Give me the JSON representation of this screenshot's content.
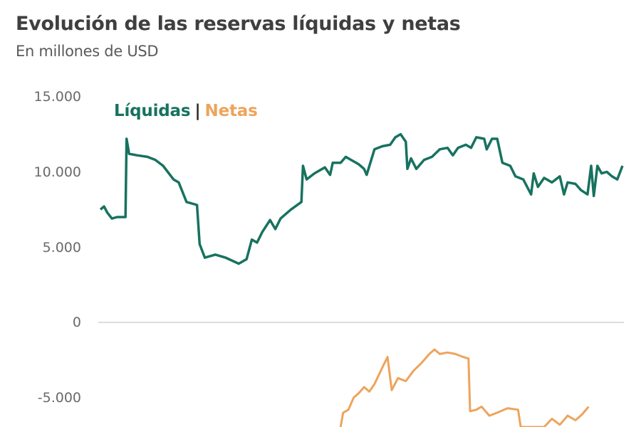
{
  "header": {
    "title": "Evolución de las reservas líquidas y netas",
    "subtitle": "En millones de USD"
  },
  "legend": {
    "liquidas": "Líquidas",
    "separator": "|",
    "netas": "Netas"
  },
  "colors": {
    "liquidas": "#17725f",
    "netas": "#eda45c",
    "zero_line": "#dddddd",
    "text": "#3f3f3f"
  },
  "axis": {
    "yticks": [
      {
        "value": 15000,
        "label": "15.000"
      },
      {
        "value": 10000,
        "label": "10.000"
      },
      {
        "value": 5000,
        "label": "5.000"
      },
      {
        "value": 0,
        "label": "0"
      },
      {
        "value": -5000,
        "label": "-5.000"
      }
    ]
  },
  "chart_data": {
    "type": "line",
    "title": "Evolución de las reservas líquidas y netas",
    "subtitle": "En millones de USD",
    "xlabel": "",
    "ylabel": "",
    "ylim": [
      -7000,
      15000
    ],
    "grid": "zero line only",
    "legend_position": "top-left inside plot",
    "x_index_range": [
      0,
      100
    ],
    "series": [
      {
        "name": "Líquidas",
        "color": "#17725f",
        "points": [
          [
            0,
            7500
          ],
          [
            0.7,
            7700
          ],
          [
            1.3,
            7300
          ],
          [
            2.2,
            6900
          ],
          [
            3.2,
            7000
          ],
          [
            4.8,
            7000
          ],
          [
            5.0,
            12200
          ],
          [
            5.5,
            11200
          ],
          [
            7,
            11100
          ],
          [
            9,
            11000
          ],
          [
            10.5,
            10800
          ],
          [
            12,
            10400
          ],
          [
            14,
            9500
          ],
          [
            15,
            9300
          ],
          [
            16.5,
            8000
          ],
          [
            18.5,
            7800
          ],
          [
            19,
            5200
          ],
          [
            20,
            4300
          ],
          [
            22,
            4500
          ],
          [
            24,
            4300
          ],
          [
            26.5,
            3900
          ],
          [
            28,
            4200
          ],
          [
            29,
            5500
          ],
          [
            30,
            5300
          ],
          [
            31,
            6000
          ],
          [
            32.5,
            6800
          ],
          [
            33.5,
            6200
          ],
          [
            34.5,
            6900
          ],
          [
            36.5,
            7500
          ],
          [
            38.5,
            8000
          ],
          [
            38.8,
            10400
          ],
          [
            39.5,
            9500
          ],
          [
            41,
            9900
          ],
          [
            43,
            10300
          ],
          [
            44,
            9800
          ],
          [
            44.5,
            10600
          ],
          [
            46,
            10600
          ],
          [
            47,
            11000
          ],
          [
            48,
            10800
          ],
          [
            49.5,
            10500
          ],
          [
            50.5,
            10200
          ],
          [
            51,
            9800
          ],
          [
            52.5,
            11500
          ],
          [
            54,
            11700
          ],
          [
            55.5,
            11800
          ],
          [
            56.5,
            12300
          ],
          [
            57.5,
            12500
          ],
          [
            58.5,
            12000
          ],
          [
            58.8,
            10200
          ],
          [
            59.5,
            10900
          ],
          [
            60.5,
            10200
          ],
          [
            62,
            10800
          ],
          [
            63.5,
            11000
          ],
          [
            65,
            11500
          ],
          [
            66.5,
            11600
          ],
          [
            67.5,
            11100
          ],
          [
            68.5,
            11600
          ],
          [
            70,
            11800
          ],
          [
            71,
            11600
          ],
          [
            72,
            12300
          ],
          [
            73.5,
            12200
          ],
          [
            74,
            11500
          ],
          [
            75,
            12200
          ],
          [
            76,
            12200
          ],
          [
            77,
            10600
          ],
          [
            78.5,
            10400
          ],
          [
            79.5,
            9700
          ],
          [
            81,
            9500
          ],
          [
            82.5,
            8500
          ],
          [
            83,
            9900
          ],
          [
            83.8,
            9000
          ],
          [
            85,
            9600
          ],
          [
            86.5,
            9300
          ],
          [
            88,
            9700
          ],
          [
            88.8,
            8500
          ],
          [
            89.5,
            9300
          ],
          [
            91,
            9200
          ],
          [
            92,
            8800
          ],
          [
            93.3,
            8500
          ],
          [
            94,
            10400
          ],
          [
            94.5,
            8400
          ],
          [
            95.2,
            10400
          ],
          [
            96,
            9900
          ],
          [
            97,
            10000
          ],
          [
            98,
            9700
          ],
          [
            99,
            9500
          ],
          [
            100,
            10400
          ]
        ]
      },
      {
        "name": "Netas",
        "color": "#eda45c",
        "points": [
          [
            46,
            -7000
          ],
          [
            46.5,
            -6000
          ],
          [
            47.5,
            -5800
          ],
          [
            48.5,
            -5000
          ],
          [
            49.5,
            -4700
          ],
          [
            50.5,
            -4300
          ],
          [
            51.5,
            -4600
          ],
          [
            52.5,
            -4100
          ],
          [
            54,
            -3000
          ],
          [
            55,
            -2300
          ],
          [
            55.8,
            -4500
          ],
          [
            57,
            -3700
          ],
          [
            58.5,
            -3900
          ],
          [
            60,
            -3200
          ],
          [
            61.5,
            -2700
          ],
          [
            63,
            -2100
          ],
          [
            64,
            -1800
          ],
          [
            65,
            -2100
          ],
          [
            66.5,
            -2000
          ],
          [
            68,
            -2100
          ],
          [
            69.5,
            -2300
          ],
          [
            70.5,
            -2400
          ],
          [
            70.8,
            -5900
          ],
          [
            72,
            -5800
          ],
          [
            73,
            -5600
          ],
          [
            74.5,
            -6200
          ],
          [
            76,
            -6000
          ],
          [
            78,
            -5700
          ],
          [
            80,
            -5800
          ],
          [
            80.5,
            -7000
          ],
          [
            85,
            -7000
          ],
          [
            86.5,
            -6400
          ],
          [
            88,
            -6800
          ],
          [
            89.5,
            -6200
          ],
          [
            91,
            -6500
          ],
          [
            92.3,
            -6100
          ],
          [
            93.5,
            -5600
          ]
        ]
      }
    ]
  }
}
